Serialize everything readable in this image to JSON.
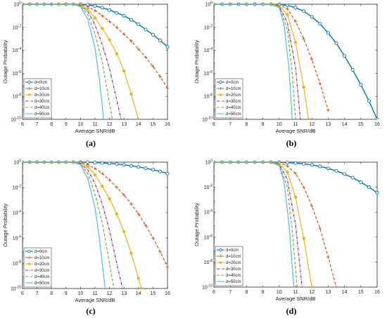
{
  "figure": {
    "colors": {
      "d=0cm": "#0072BD",
      "d=10cm": "#D95319",
      "d=20cm": "#EDB120",
      "d=30cm": "#7E2F8E",
      "d=40cm": "#77AC30",
      "d=50cm": "#4DBEEE"
    }
  },
  "chart_data": [
    {
      "panel": "(a)",
      "type": "line",
      "ylabel": "Outage Probability",
      "xlabel": "Average SNR/dB",
      "xlim": [
        6,
        16
      ],
      "ylim_log10": [
        -10,
        0
      ],
      "y_scale": "log",
      "x_ticks": [
        "6",
        "7",
        "8",
        "9",
        "10",
        "11",
        "12",
        "13",
        "14",
        "15",
        "16"
      ],
      "y_ticks": [
        "10^-10",
        "10^-8",
        "10^-6",
        "10^-4",
        "10^-2",
        "10^0"
      ],
      "legend_position": "bottom-left",
      "series": [
        {
          "name": "d=0cm",
          "marker": "o",
          "style": "solid",
          "x": [
            6,
            6.5,
            7,
            7.5,
            8,
            8.5,
            9,
            9.5,
            10,
            10.5,
            11,
            11.5,
            12,
            12.5,
            13,
            13.5,
            14,
            14.5,
            15,
            15.5,
            16
          ],
          "log10_y": [
            0,
            0,
            0,
            0,
            0,
            0,
            0,
            0,
            -0.01,
            -0.05,
            -0.15,
            -0.3,
            -0.5,
            -0.75,
            -1.0,
            -1.35,
            -1.75,
            -2.2,
            -2.65,
            -3.15,
            -3.7
          ]
        },
        {
          "name": "d=10cm",
          "marker": "+",
          "style": "dashed",
          "x": [
            6,
            6.5,
            7,
            7.5,
            8,
            8.5,
            9,
            9.5,
            10,
            10.5,
            11,
            11.5,
            12,
            12.5,
            13,
            13.5,
            14,
            14.5,
            15,
            15.5,
            16
          ],
          "log10_y": [
            0,
            0,
            0,
            0,
            0,
            0,
            0,
            0,
            -0.03,
            -0.2,
            -0.55,
            -1.0,
            -1.5,
            -2.0,
            -2.6,
            -3.2,
            -3.9,
            -4.6,
            -5.4,
            -6.3,
            -7.3
          ]
        },
        {
          "name": "d=20cm",
          "marker": "*",
          "style": "solid",
          "x": [
            6,
            6.5,
            7,
            7.5,
            8,
            8.5,
            9,
            9.5,
            10,
            10.5,
            11,
            11.5,
            12,
            12.5,
            13,
            13.5,
            14
          ],
          "log10_y": [
            0,
            0,
            0,
            0,
            0,
            0,
            0,
            0,
            -0.05,
            -0.4,
            -1.2,
            -2.1,
            -3.1,
            -4.3,
            -5.8,
            -7.8,
            -10
          ]
        },
        {
          "name": "d=30cm",
          "marker": "none",
          "style": "dashdot",
          "x": [
            6,
            7,
            8,
            9,
            9.5,
            10,
            10.5,
            11,
            11.5,
            12,
            12.5,
            12.8
          ],
          "log10_y": [
            0,
            0,
            0,
            0,
            0,
            -0.1,
            -0.6,
            -1.8,
            -3.5,
            -5.6,
            -8.3,
            -10
          ]
        },
        {
          "name": "d=40cm",
          "marker": "none",
          "style": "dashed",
          "x": [
            6,
            7,
            8,
            9,
            9.5,
            10,
            10.5,
            11,
            11.5,
            12,
            12.2
          ],
          "log10_y": [
            0,
            0,
            0,
            0,
            0,
            -0.15,
            -0.9,
            -2.6,
            -5.0,
            -8.6,
            -10
          ]
        },
        {
          "name": "d=50cm",
          "marker": "none",
          "style": "solid",
          "x": [
            6,
            7,
            8,
            9,
            9.5,
            10,
            10.5,
            11,
            11.3,
            11.6
          ],
          "log10_y": [
            0,
            0,
            0,
            0,
            -0.02,
            -0.2,
            -1.3,
            -3.8,
            -6.5,
            -10
          ]
        }
      ]
    },
    {
      "panel": "(b)",
      "type": "line",
      "ylabel": "Outage Probability",
      "xlabel": "Average SNR/dB",
      "xlim": [
        6,
        16
      ],
      "ylim_log10": [
        -10,
        0
      ],
      "y_scale": "log",
      "x_ticks": [
        "6",
        "7",
        "8",
        "9",
        "10",
        "11",
        "12",
        "13",
        "14",
        "15",
        "16"
      ],
      "y_ticks": [
        "10^-10",
        "10^-8",
        "10^-6",
        "10^-4",
        "10^-2",
        "10^0"
      ],
      "legend_position": "bottom-left",
      "series": [
        {
          "name": "d=0cm",
          "marker": "o",
          "style": "solid",
          "x": [
            6,
            6.5,
            7,
            7.5,
            8,
            8.5,
            9,
            9.5,
            10,
            10.5,
            11,
            11.5,
            12,
            12.5,
            13,
            13.5,
            14,
            14.5,
            15,
            15.5,
            16
          ],
          "log10_y": [
            0,
            0,
            0,
            0,
            0,
            0,
            0,
            0,
            -0.02,
            -0.1,
            -0.3,
            -0.6,
            -1.1,
            -1.7,
            -2.5,
            -3.4,
            -4.5,
            -5.7,
            -7.0,
            -8.4,
            -10
          ]
        },
        {
          "name": "d=10cm",
          "marker": "+",
          "style": "dashed",
          "x": [
            6,
            7,
            8,
            9,
            9.5,
            10,
            10.5,
            11,
            11.5,
            12,
            12.5,
            13
          ],
          "log10_y": [
            0,
            0,
            0,
            0,
            0,
            -0.05,
            -0.4,
            -1.5,
            -3.0,
            -4.8,
            -6.9,
            -9.2
          ]
        },
        {
          "name": "d=20cm",
          "marker": "*",
          "style": "solid",
          "x": [
            6,
            7,
            8,
            9,
            9.5,
            10,
            10.5,
            11,
            11.5,
            11.8
          ],
          "log10_y": [
            0,
            0,
            0,
            0,
            0,
            -0.1,
            -0.9,
            -3.3,
            -7.2,
            -10
          ]
        },
        {
          "name": "d=30cm",
          "marker": "none",
          "style": "dashdot",
          "x": [
            6,
            7,
            8,
            9,
            9.5,
            10,
            10.5,
            11,
            11.3
          ],
          "log10_y": [
            0,
            0,
            0,
            0,
            0,
            -0.15,
            -1.6,
            -5.5,
            -10
          ]
        },
        {
          "name": "d=40cm",
          "marker": "none",
          "style": "dashed",
          "x": [
            6,
            7,
            8,
            9,
            9.5,
            10,
            10.5,
            10.8,
            11
          ],
          "log10_y": [
            0,
            0,
            0,
            0,
            0,
            -0.2,
            -2.2,
            -6.0,
            -10
          ]
        },
        {
          "name": "d=50cm",
          "marker": "none",
          "style": "solid",
          "x": [
            6,
            7,
            8,
            9,
            9.5,
            10,
            10.3,
            10.6,
            10.8
          ],
          "log10_y": [
            0,
            0,
            0,
            0,
            -0.02,
            -0.3,
            -1.8,
            -5.6,
            -10
          ]
        }
      ]
    },
    {
      "panel": "(c)",
      "type": "line",
      "ylabel": "Outage Probability",
      "xlabel": "Average SNR/dB",
      "xlim": [
        6,
        16
      ],
      "ylim_log10": [
        -10,
        0
      ],
      "y_scale": "log",
      "x_ticks": [
        "6",
        "7",
        "8",
        "9",
        "10",
        "11",
        "12",
        "13",
        "14",
        "15",
        "16"
      ],
      "y_ticks": [
        "10^-10",
        "10^-8",
        "10^-6",
        "10^-4",
        "10^-2",
        "10^0"
      ],
      "legend_position": "bottom-left",
      "series": [
        {
          "name": "d=0cm",
          "marker": "o",
          "style": "solid",
          "x": [
            6,
            6.5,
            7,
            7.5,
            8,
            8.5,
            9,
            9.5,
            10,
            10.5,
            11,
            11.5,
            12,
            12.5,
            13,
            13.5,
            14,
            14.5,
            15,
            15.5,
            16
          ],
          "log10_y": [
            0,
            0,
            0,
            0,
            0,
            0,
            0,
            0,
            0,
            -0.01,
            -0.03,
            -0.06,
            -0.1,
            -0.15,
            -0.21,
            -0.29,
            -0.38,
            -0.48,
            -0.6,
            -0.74,
            -0.9
          ]
        },
        {
          "name": "d=10cm",
          "marker": "+",
          "style": "dashed",
          "x": [
            6,
            6.5,
            7,
            7.5,
            8,
            8.5,
            9,
            9.5,
            10,
            10.5,
            11,
            11.5,
            12,
            12.5,
            13,
            13.5,
            14,
            14.5,
            15,
            15.5,
            16
          ],
          "log10_y": [
            0,
            0,
            0,
            0,
            0,
            0,
            0,
            0,
            -0.03,
            -0.2,
            -0.5,
            -0.9,
            -1.4,
            -2.0,
            -2.6,
            -3.3,
            -4.1,
            -5.0,
            -6.0,
            -7.1,
            -8.3
          ]
        },
        {
          "name": "d=20cm",
          "marker": "*",
          "style": "solid",
          "x": [
            6,
            6.5,
            7,
            7.5,
            8,
            8.5,
            9,
            9.5,
            10,
            10.5,
            11,
            11.5,
            12,
            12.5,
            13,
            13.5,
            14,
            14.2
          ],
          "log10_y": [
            0,
            0,
            0,
            0,
            0,
            0,
            0,
            0,
            -0.05,
            -0.35,
            -1.0,
            -1.9,
            -2.9,
            -4.1,
            -5.5,
            -7.2,
            -9.2,
            -10
          ]
        },
        {
          "name": "d=30cm",
          "marker": "none",
          "style": "dashdot",
          "x": [
            6,
            7,
            8,
            9,
            9.5,
            10,
            10.5,
            11,
            11.5,
            12,
            12.5,
            12.9
          ],
          "log10_y": [
            0,
            0,
            0,
            0,
            0,
            -0.1,
            -0.6,
            -1.7,
            -3.3,
            -5.4,
            -8.0,
            -10
          ]
        },
        {
          "name": "d=40cm",
          "marker": "none",
          "style": "dashed",
          "x": [
            6,
            7,
            8,
            9,
            9.5,
            10,
            10.5,
            11,
            11.5,
            12,
            12.3
          ],
          "log10_y": [
            0,
            0,
            0,
            0,
            0,
            -0.15,
            -0.9,
            -2.5,
            -4.8,
            -8.0,
            -10
          ]
        },
        {
          "name": "d=50cm",
          "marker": "none",
          "style": "solid",
          "x": [
            6,
            7,
            8,
            9,
            9.5,
            10,
            10.5,
            11,
            11.3,
            11.7
          ],
          "log10_y": [
            0,
            0,
            0,
            0,
            -0.02,
            -0.2,
            -1.3,
            -3.6,
            -6.0,
            -10
          ]
        }
      ]
    },
    {
      "panel": "(d)",
      "type": "line",
      "ylabel": "Outage Probability",
      "xlabel": "Average SNR/dB",
      "xlim": [
        6,
        16
      ],
      "ylim_log10": [
        -10,
        0
      ],
      "y_scale": "log",
      "x_ticks": [
        "6",
        "7",
        "8",
        "9",
        "10",
        "11",
        "12",
        "13",
        "14",
        "15",
        "16"
      ],
      "y_ticks": [
        "10^-10",
        "10^-8",
        "10^-6",
        "10^-4",
        "10^-2",
        "10^0"
      ],
      "legend_position": "bottom-left",
      "series": [
        {
          "name": "d=0cm",
          "marker": "o",
          "style": "solid",
          "x": [
            6,
            6.5,
            7,
            7.5,
            8,
            8.5,
            9,
            9.5,
            10,
            10.5,
            11,
            11.5,
            12,
            12.5,
            13,
            13.5,
            14,
            14.5,
            15,
            15.5,
            16
          ],
          "log10_y": [
            0,
            0,
            0,
            0,
            0,
            0,
            0,
            0,
            -0.01,
            -0.03,
            -0.07,
            -0.13,
            -0.22,
            -0.34,
            -0.5,
            -0.7,
            -0.95,
            -1.25,
            -1.6,
            -2.0,
            -2.45
          ]
        },
        {
          "name": "d=10cm",
          "marker": "+",
          "style": "dashed",
          "x": [
            6,
            6.5,
            7,
            7.5,
            8,
            8.5,
            9,
            9.5,
            10,
            10.5,
            11,
            11.5,
            12,
            12.5,
            13,
            13.5
          ],
          "log10_y": [
            0,
            0,
            0,
            0,
            0,
            0,
            0,
            0,
            -0.05,
            -0.3,
            -0.9,
            -2.0,
            -3.5,
            -5.3,
            -7.6,
            -10
          ]
        },
        {
          "name": "d=20cm",
          "marker": "*",
          "style": "solid",
          "x": [
            6,
            6.5,
            7,
            7.5,
            8,
            8.5,
            9,
            9.5,
            10,
            10.5,
            11,
            11.5,
            12
          ],
          "log10_y": [
            0,
            0,
            0,
            0,
            0,
            0,
            0,
            0,
            -0.1,
            -0.8,
            -2.8,
            -6.1,
            -10
          ]
        },
        {
          "name": "d=30cm",
          "marker": "none",
          "style": "dashdot",
          "x": [
            6,
            7,
            8,
            9,
            9.5,
            10,
            10.5,
            11,
            11.4
          ],
          "log10_y": [
            0,
            0,
            0,
            0,
            0,
            -0.15,
            -1.4,
            -5.0,
            -10
          ]
        },
        {
          "name": "d=40cm",
          "marker": "none",
          "style": "dashed",
          "x": [
            6,
            7,
            8,
            9,
            9.5,
            10,
            10.5,
            10.8,
            11.1
          ],
          "log10_y": [
            0,
            0,
            0,
            0,
            0,
            -0.2,
            -2.0,
            -5.5,
            -10
          ]
        },
        {
          "name": "d=50cm",
          "marker": "none",
          "style": "solid",
          "x": [
            6,
            7,
            8,
            9,
            9.5,
            10,
            10.3,
            10.6,
            10.9
          ],
          "log10_y": [
            0,
            0,
            0,
            0,
            -0.02,
            -0.3,
            -1.6,
            -5.0,
            -10
          ]
        }
      ]
    }
  ]
}
